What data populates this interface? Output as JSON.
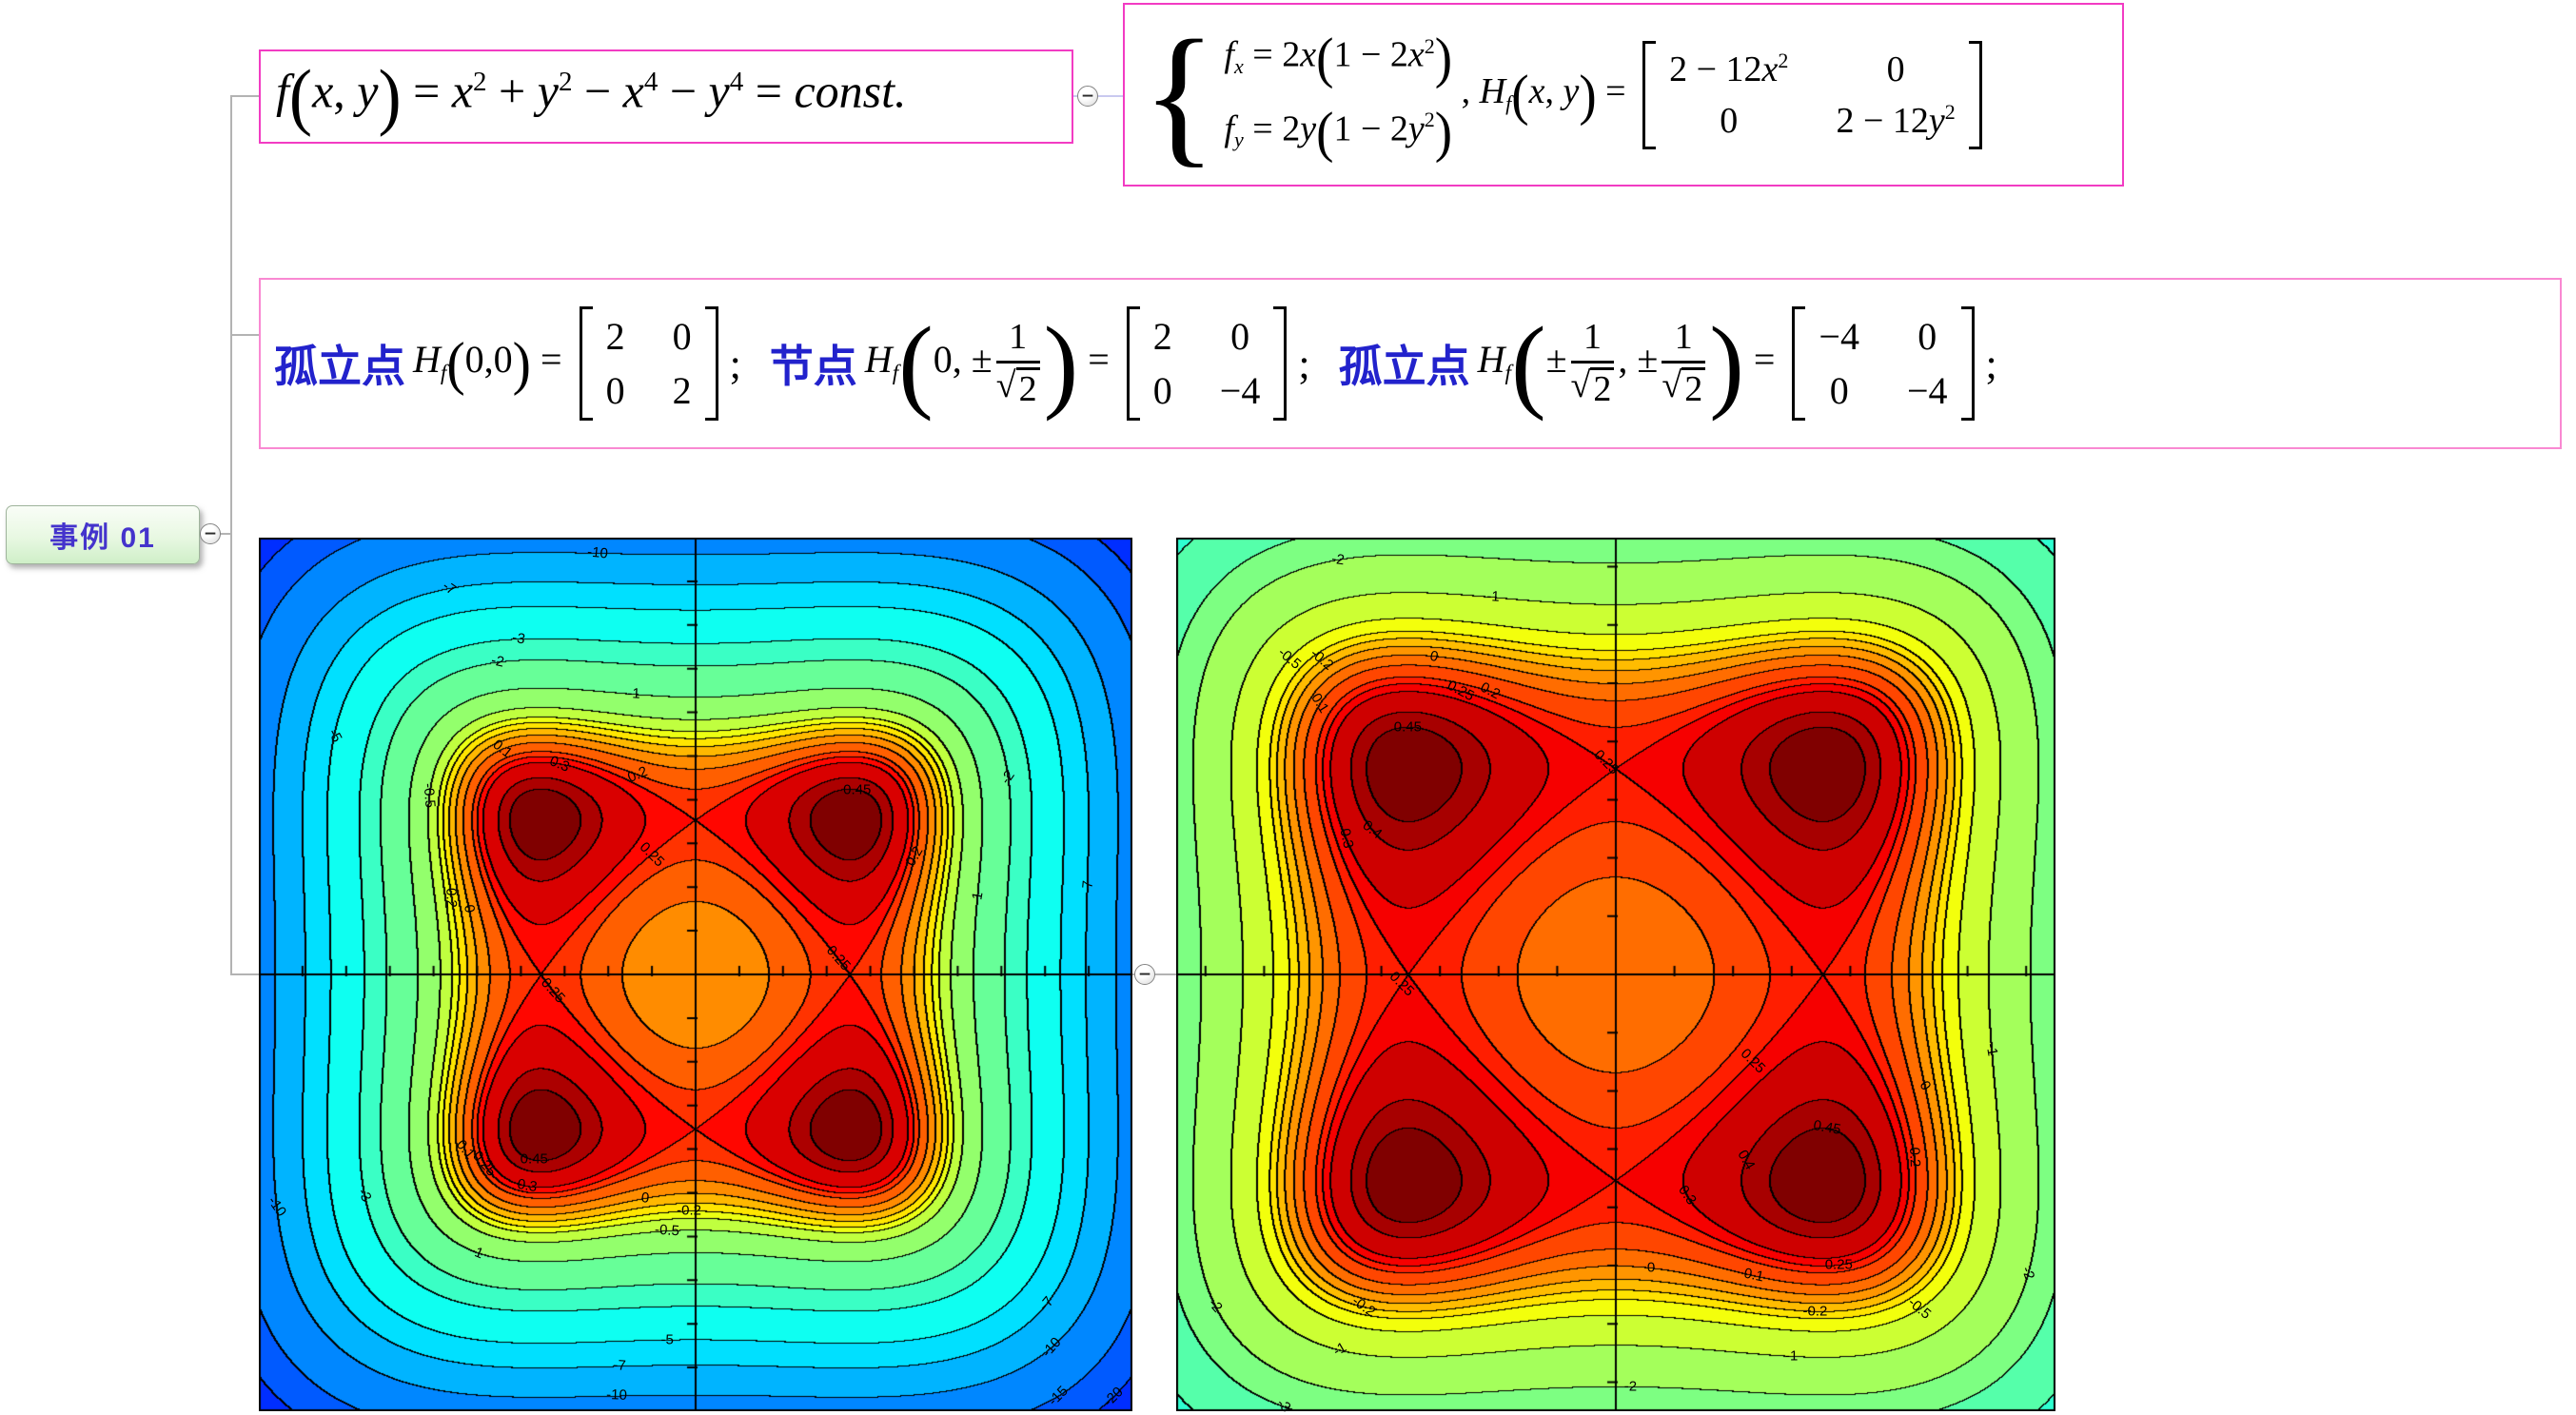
{
  "node": {
    "label": "事例 01"
  },
  "connectors": {
    "collapse_symbol": "−"
  },
  "colors": {
    "topic_border": "#f23cc3",
    "statement_border": "#f989d2",
    "node_text": "#4433cc",
    "blue_label": "#2222cc",
    "connector_gray": "#b3b3b3",
    "connector_lavender": "#c9c9ef",
    "node_fill": "#d8f2d0"
  },
  "box1": {
    "tokens": [
      {
        "t": "f",
        "it": 1
      },
      {
        "p": "(",
        "s": 1
      },
      {
        "t": "x",
        "it": 1
      },
      {
        "t": ", "
      },
      {
        "t": "y",
        "it": 1
      },
      {
        "p": ")",
        "s": 1
      },
      {
        "t": " = "
      },
      {
        "t": "x",
        "it": 1
      },
      {
        "t": "2",
        "sup": 1
      },
      {
        "t": " + "
      },
      {
        "t": "y",
        "it": 1
      },
      {
        "t": "2",
        "sup": 1
      },
      {
        "t": " − "
      },
      {
        "t": "x",
        "it": 1
      },
      {
        "t": "4",
        "sup": 1
      },
      {
        "t": " − "
      },
      {
        "t": "y",
        "it": 1
      },
      {
        "t": "4",
        "sup": 1
      },
      {
        "t": " = "
      },
      {
        "t": "const.",
        "it": 1
      }
    ]
  },
  "box2": {
    "tokens": [
      {
        "brace": 1
      },
      {
        "stack": [
          [
            {
              "t": "f",
              "it": 1
            },
            {
              "t": "x",
              "sub": 1
            },
            {
              "t": " = 2"
            },
            {
              "t": "x",
              "it": 1
            },
            {
              "p": "(",
              "s": 1
            },
            {
              "t": "1 − 2"
            },
            {
              "t": "x",
              "it": 1
            },
            {
              "t": "2",
              "sup": 1
            },
            {
              "p": ")",
              "s": 1
            }
          ],
          [
            {
              "t": "f",
              "it": 1
            },
            {
              "t": "y",
              "sub": 1
            },
            {
              "t": " = 2"
            },
            {
              "t": "y",
              "it": 1
            },
            {
              "p": "(",
              "s": 1
            },
            {
              "t": "1 − 2"
            },
            {
              "t": "y",
              "it": 1
            },
            {
              "t": "2",
              "sup": 1
            },
            {
              "p": ")",
              "s": 1
            }
          ]
        ]
      },
      {
        "t": " , "
      },
      {
        "t": "H",
        "it": 1
      },
      {
        "t": "f",
        "sub": 1
      },
      {
        "p": "(",
        "s": 1
      },
      {
        "t": "x",
        "it": 1
      },
      {
        "t": ", "
      },
      {
        "t": "y",
        "it": 1
      },
      {
        "p": ")",
        "s": 1
      },
      {
        "t": " = "
      },
      {
        "mat": [
          [
            "2 − 12|x|²",
            "0"
          ],
          [
            "0",
            "2 − 12|y|²"
          ]
        ]
      }
    ]
  },
  "box3": {
    "items": [
      {
        "label": "孤立点",
        "math": [
          {
            "t": "H",
            "it": 1
          },
          {
            "t": "f",
            "sub": 1
          },
          {
            "p": "(",
            "s": 1
          },
          {
            "t": "0,0"
          },
          {
            "p": ")",
            "s": 1
          },
          {
            "t": " = "
          },
          {
            "mat": [
              [
                "2",
                "0"
              ],
              [
                "0",
                "2"
              ]
            ]
          }
        ],
        "tail": ";"
      },
      {
        "label": "节点",
        "math": [
          {
            "t": "H",
            "it": 1
          },
          {
            "t": "f",
            "sub": 1
          },
          {
            "p": "(",
            "s": 2
          },
          {
            "t": "0,  "
          },
          {
            "t": "±"
          },
          {
            "frac": {
              "n": "1",
              "d": "2",
              "sqrt": 1
            }
          },
          {
            "p": ")",
            "s": 2
          },
          {
            "t": " = "
          },
          {
            "mat": [
              [
                "2",
                "0"
              ],
              [
                "0",
                "−4"
              ]
            ]
          }
        ],
        "tail": ";"
      },
      {
        "label": "孤立点",
        "math": [
          {
            "t": "H",
            "it": 1
          },
          {
            "t": "f",
            "sub": 1
          },
          {
            "p": "(",
            "s": 2
          },
          {
            "t": "±"
          },
          {
            "frac": {
              "n": "1",
              "d": "2",
              "sqrt": 1
            }
          },
          {
            "t": ",  "
          },
          {
            "t": "±"
          },
          {
            "frac": {
              "n": "1",
              "d": "2",
              "sqrt": 1
            }
          },
          {
            "p": ")",
            "s": 2
          },
          {
            "t": " = "
          },
          {
            "mat": [
              [
                "−4",
                "0"
              ],
              [
                "0",
                "−4"
              ]
            ]
          }
        ],
        "tail": ";"
      }
    ]
  },
  "chart_data": [
    {
      "type": "contour",
      "function": "f(x,y) = x^2 + y^2 - x^4 - y^4",
      "x_range": [
        -2,
        2
      ],
      "y_range": [
        -2,
        2
      ],
      "levels": [
        -20,
        -15,
        -10,
        -7,
        -5,
        -3,
        -2,
        -1,
        -0.5,
        -0.3,
        -0.2,
        -0.1,
        0,
        0.1,
        0.2,
        0.25,
        0.3,
        0.4,
        0.45
      ],
      "colormap": "jet",
      "colormap_span": [
        0.17,
        1.0
      ],
      "axis_tick_step": 0.2,
      "critical_points": {
        "isolated_local_min": [
          [
            0,
            0
          ]
        ],
        "saddle_nodes": [
          [
            0,
            0.7071
          ],
          [
            0,
            -0.7071
          ],
          [
            0.7071,
            0
          ],
          [
            -0.7071,
            0
          ]
        ],
        "isolated_maxima": [
          [
            0.7071,
            0.7071
          ],
          [
            0.7071,
            -0.7071
          ],
          [
            -0.7071,
            0.7071
          ],
          [
            -0.7071,
            -0.7071
          ]
        ],
        "max_value": 0.5,
        "saddle_value": 0.25
      },
      "contour_labels": [
        {
          "text": "-10",
          "x": -0.45,
          "y": 1.92,
          "rot": 6,
          "level": -10
        },
        {
          "text": "-7",
          "x": -1.1,
          "y": 1.64,
          "rot": 35,
          "level": -7
        },
        {
          "text": "-5",
          "x": -1.68,
          "y": 1.1,
          "rot": 62,
          "level": -5
        },
        {
          "text": "-3",
          "x": -0.81,
          "y": 1.56,
          "rot": 10,
          "level": -3
        },
        {
          "text": "-2",
          "x": -0.91,
          "y": 1.45,
          "rot": 12,
          "level": -2
        },
        {
          "text": "-1",
          "x": -0.28,
          "y": 1.31,
          "rot": 3,
          "level": -1
        },
        {
          "text": "-0.5",
          "x": -1.23,
          "y": 0.82,
          "rot": 85,
          "level": -0.5
        },
        {
          "text": "-0.2",
          "x": -1.14,
          "y": 0.36,
          "rot": 88,
          "level": -0.2
        },
        {
          "text": "0",
          "x": -1.05,
          "y": 0.3,
          "rot": 80,
          "level": 0
        },
        {
          "text": "0.1",
          "x": -0.89,
          "y": 1.05,
          "rot": 38,
          "level": 0.1
        },
        {
          "text": "0.3",
          "x": -0.62,
          "y": 0.97,
          "rot": 22,
          "level": 0.3
        },
        {
          "text": "0.2",
          "x": -0.26,
          "y": 0.94,
          "rot": -22,
          "level": 0.2
        },
        {
          "text": "0.25",
          "x": -0.66,
          "y": -0.08,
          "rot": 48,
          "level": 0.25
        },
        {
          "text": "0.25",
          "x": -0.2,
          "y": 0.55,
          "rot": 45,
          "level": 0.25
        },
        {
          "text": "0.25",
          "x": 0.66,
          "y": 0.08,
          "rot": 48,
          "level": 0.25
        },
        {
          "text": "0.45",
          "x": -0.74,
          "y": -0.85,
          "rot": 0,
          "level": 0.45
        },
        {
          "text": "0.45",
          "x": 0.74,
          "y": 0.85,
          "rot": 0,
          "level": 0.45
        },
        {
          "text": "0.1",
          "x": -1.05,
          "y": -0.8,
          "rot": 50,
          "level": 0.1
        },
        {
          "text": "0.25",
          "x": -0.95,
          "y": -0.86,
          "rot": 50,
          "level": 0.25
        },
        {
          "text": "0.3",
          "x": -0.77,
          "y": -0.97,
          "rot": 10,
          "level": 0.3
        },
        {
          "text": "0",
          "x": -0.23,
          "y": -1.02,
          "rot": 5,
          "level": 0
        },
        {
          "text": "-0.2",
          "x": -0.03,
          "y": -1.09,
          "rot": 0,
          "level": -0.2
        },
        {
          "text": "-0.5",
          "x": -0.13,
          "y": -1.17,
          "rot": 4,
          "level": -0.5
        },
        {
          "text": "-1",
          "x": -1.0,
          "y": -1.26,
          "rot": 22,
          "level": -1
        },
        {
          "text": "-3",
          "x": -1.51,
          "y": -1.01,
          "rot": 60,
          "level": -3
        },
        {
          "text": "-10",
          "x": -1.9,
          "y": -1.06,
          "rot": 55,
          "level": -10
        },
        {
          "text": "-5",
          "x": -0.13,
          "y": -1.67,
          "rot": 0,
          "level": -5
        },
        {
          "text": "-7",
          "x": -0.35,
          "y": -1.79,
          "rot": 4,
          "level": -7
        },
        {
          "text": "-10",
          "x": -0.36,
          "y": -1.91,
          "rot": 2,
          "level": -10
        },
        {
          "text": "-7",
          "x": 1.61,
          "y": -1.51,
          "rot": -50,
          "level": -7
        },
        {
          "text": "-10",
          "x": 1.63,
          "y": -1.71,
          "rot": -48,
          "level": -10
        },
        {
          "text": "-15",
          "x": 1.66,
          "y": -1.93,
          "rot": -45,
          "level": -15
        },
        {
          "text": "-20",
          "x": 1.91,
          "y": -1.93,
          "rot": -45,
          "level": -20
        },
        {
          "text": "-1",
          "x": 1.28,
          "y": 0.35,
          "rot": -80,
          "level": -1
        },
        {
          "text": "-2",
          "x": 1.41,
          "y": 0.9,
          "rot": -55,
          "level": -2
        },
        {
          "text": "-7",
          "x": 1.8,
          "y": 0.4,
          "rot": -85,
          "level": -7
        },
        {
          "text": "0.2",
          "x": 0.96,
          "y": 0.55,
          "rot": -60,
          "level": 0.2
        }
      ]
    },
    {
      "type": "contour",
      "function": "f(x,y) = x^2 + y^2 - x^4 - y^4",
      "x_range": [
        -1.5,
        1.5
      ],
      "y_range": [
        -1.5,
        1.5
      ],
      "levels": [
        -5,
        -3,
        -2,
        -1,
        -0.5,
        -0.3,
        -0.2,
        -0.1,
        0,
        0.1,
        0.2,
        0.25,
        0.3,
        0.4,
        0.45
      ],
      "colormap": "jet",
      "colormap_span": [
        0.42,
        1.0
      ],
      "axis_tick_step": 0.2,
      "critical_points": {
        "isolated_local_min": [
          [
            0,
            0
          ]
        ],
        "saddle_nodes": [
          [
            0,
            0.7071
          ],
          [
            0,
            -0.7071
          ],
          [
            0.7071,
            0
          ],
          [
            -0.7071,
            0
          ]
        ],
        "isolated_maxima": [
          [
            0.7071,
            0.7071
          ],
          [
            0.7071,
            -0.7071
          ],
          [
            -0.7071,
            0.7071
          ],
          [
            -0.7071,
            -0.7071
          ]
        ],
        "max_value": 0.5,
        "saddle_value": 0.25
      },
      "contour_labels": [
        {
          "text": "-2",
          "x": -0.95,
          "y": 1.43,
          "rot": 8,
          "level": -2
        },
        {
          "text": "-1",
          "x": -0.42,
          "y": 1.29,
          "rot": 3,
          "level": -1
        },
        {
          "text": "-0.5",
          "x": -1.11,
          "y": 1.08,
          "rot": 40,
          "level": -0.5
        },
        {
          "text": "-0.2",
          "x": -1.01,
          "y": 1.09,
          "rot": 40,
          "level": -0.2
        },
        {
          "text": "0",
          "x": -0.62,
          "y": 1.09,
          "rot": 12,
          "level": 0
        },
        {
          "text": "0.25",
          "x": -0.53,
          "y": 0.97,
          "rot": 28,
          "level": 0.25
        },
        {
          "text": "0.2",
          "x": -0.43,
          "y": 0.97,
          "rot": 28,
          "level": 0.2
        },
        {
          "text": "0.1",
          "x": -1.01,
          "y": 0.93,
          "rot": 58,
          "level": 0.1
        },
        {
          "text": "0.3",
          "x": -0.98,
          "y": 0.45,
          "rot": 78,
          "level": 0.3
        },
        {
          "text": "0.4",
          "x": -0.84,
          "y": 0.49,
          "rot": 38,
          "level": 0.4
        },
        {
          "text": "0.45",
          "x": -0.71,
          "y": 0.86,
          "rot": 0,
          "level": 0.45
        },
        {
          "text": "0.25",
          "x": -0.05,
          "y": 0.72,
          "rot": 45,
          "level": 0.25
        },
        {
          "text": "0.25",
          "x": -0.72,
          "y": -0.05,
          "rot": 45,
          "level": 0.25
        },
        {
          "text": "0.25",
          "x": 0.46,
          "y": -0.29,
          "rot": 45,
          "level": 0.25
        },
        {
          "text": "0.45",
          "x": 0.72,
          "y": -0.53,
          "rot": 10,
          "level": 0.45
        },
        {
          "text": "0.4",
          "x": 0.43,
          "y": -0.63,
          "rot": 60,
          "level": 0.4
        },
        {
          "text": "0.3",
          "x": 0.23,
          "y": -0.77,
          "rot": 55,
          "level": 0.3
        },
        {
          "text": "0.2",
          "x": 1.01,
          "y": -0.63,
          "rot": 88,
          "level": 0.2
        },
        {
          "text": "0",
          "x": 0.12,
          "y": -1.01,
          "rot": 0,
          "level": 0
        },
        {
          "text": "0",
          "x": 1.03,
          "y": -0.39,
          "rot": 60,
          "level": 0
        },
        {
          "text": "0.1",
          "x": 0.47,
          "y": -1.03,
          "rot": 12,
          "level": 0.1
        },
        {
          "text": "0.25",
          "x": 0.76,
          "y": -0.99,
          "rot": 0,
          "level": 0.25
        },
        {
          "text": "-0.2",
          "x": 0.68,
          "y": -1.15,
          "rot": 0,
          "level": -0.2
        },
        {
          "text": "-0.5",
          "x": 1.03,
          "y": -1.14,
          "rot": 40,
          "level": -0.5
        },
        {
          "text": "-1",
          "x": 0.6,
          "y": -1.3,
          "rot": 0,
          "level": -1
        },
        {
          "text": "-2",
          "x": 1.39,
          "y": -1.02,
          "rot": 70,
          "level": -2
        },
        {
          "text": "-2",
          "x": 0.05,
          "y": -1.41,
          "rot": 0,
          "level": -2
        },
        {
          "text": "-1",
          "x": 1.27,
          "y": -0.26,
          "rot": 80,
          "level": -1
        },
        {
          "text": "-2",
          "x": -1.39,
          "y": -1.15,
          "rot": 50,
          "level": -2
        },
        {
          "text": "-1",
          "x": -0.94,
          "y": -1.28,
          "rot": -30,
          "level": -1
        },
        {
          "text": "-0.2",
          "x": -0.86,
          "y": -1.14,
          "rot": 35,
          "level": -0.2
        },
        {
          "text": "-3",
          "x": -1.13,
          "y": -1.47,
          "rot": 45,
          "level": -3
        }
      ]
    }
  ]
}
